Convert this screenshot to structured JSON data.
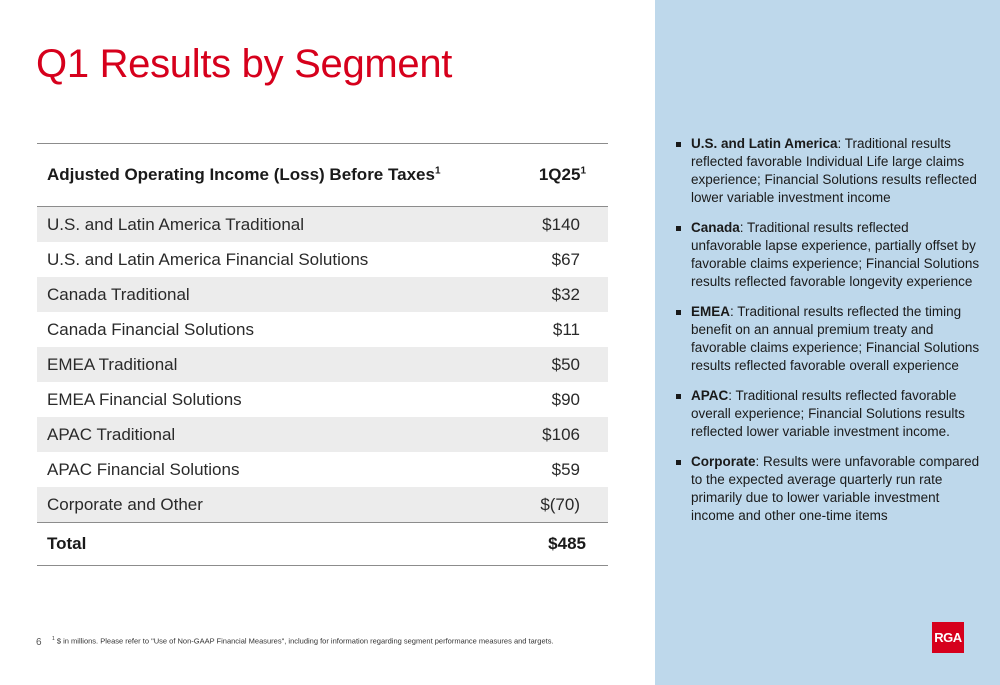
{
  "page": {
    "title": "Q1 Results by Segment",
    "page_number": "6"
  },
  "table": {
    "header_label": "Adjusted Operating Income (Loss) Before Taxes",
    "header_label_sup": "1",
    "header_period": "1Q25",
    "header_period_sup": "1",
    "rows": [
      {
        "segment": "U.S. and Latin America Traditional",
        "value": "$140"
      },
      {
        "segment": "U.S. and Latin America Financial Solutions",
        "value": "$67"
      },
      {
        "segment": "Canada Traditional",
        "value": "$32"
      },
      {
        "segment": "Canada Financial Solutions",
        "value": "$11"
      },
      {
        "segment": "EMEA Traditional",
        "value": "$50"
      },
      {
        "segment": "EMEA Financial Solutions",
        "value": "$90"
      },
      {
        "segment": "APAC Traditional",
        "value": "$106"
      },
      {
        "segment": "APAC Financial Solutions",
        "value": "$59"
      },
      {
        "segment": "Corporate and Other",
        "value": "$(70)"
      }
    ],
    "total": {
      "segment": "Total",
      "value": "$485"
    }
  },
  "commentary": [
    {
      "heading": "U.S. and Latin America",
      "text": ": Traditional results reflected favorable Individual Life large claims experience; Financial Solutions results reflected lower variable investment income"
    },
    {
      "heading": "Canada",
      "text": ": Traditional results reflected unfavorable lapse experience, partially offset by favorable claims experience; Financial Solutions results reflected favorable longevity experience"
    },
    {
      "heading": "EMEA",
      "text": ": Traditional results reflected the timing benefit on an annual premium treaty and favorable claims experience; Financial Solutions results reflected favorable overall experience"
    },
    {
      "heading": "APAC",
      "text": ": Traditional results reflected favorable overall experience; Financial Solutions results reflected lower variable investment income."
    },
    {
      "heading": "Corporate",
      "text": ": Results were unfavorable compared to the expected average quarterly run rate primarily due to lower variable investment income and other one-time items"
    }
  ],
  "footnote": {
    "marker": "1",
    "text": "$ in millions. Please refer to \"Use of Non-GAAP Financial Measures\", including for information regarding segment performance measures and targets."
  },
  "logo": {
    "text": "RGA",
    "color": "#d6001c"
  },
  "colors": {
    "accent": "#d6001c",
    "sidebar_bg": "#bed8eb",
    "row_shade": "#ececec"
  }
}
